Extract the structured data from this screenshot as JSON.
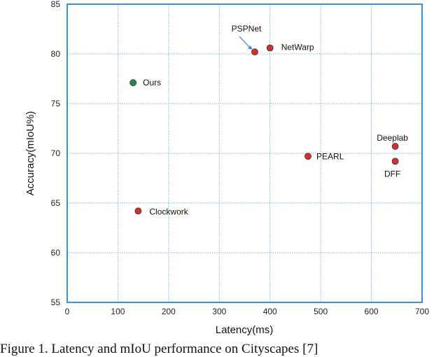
{
  "chart_data": {
    "type": "scatter",
    "xlabel": "Latency(ms)",
    "ylabel": "Accuracy(mIoU%)",
    "xlim": [
      0,
      700
    ],
    "ylim": [
      55,
      85
    ],
    "xticks": [
      0,
      100,
      200,
      300,
      400,
      500,
      600,
      700
    ],
    "yticks": [
      55,
      60,
      65,
      70,
      75,
      80,
      85
    ],
    "grid": true,
    "points": [
      {
        "label": "Ours",
        "x": 130,
        "y": 77.1,
        "color": "#1e8c4a"
      },
      {
        "label": "PSPNet",
        "x": 370,
        "y": 80.2,
        "color": "#d0312d"
      },
      {
        "label": "NetWarp",
        "x": 400,
        "y": 80.6,
        "color": "#d0312d"
      },
      {
        "label": "Deeplab",
        "x": 647,
        "y": 70.7,
        "color": "#d0312d"
      },
      {
        "label": "PEARL",
        "x": 475,
        "y": 69.7,
        "color": "#d0312d"
      },
      {
        "label": "DFF",
        "x": 647,
        "y": 69.2,
        "color": "#d0312d"
      },
      {
        "label": "Clockwork",
        "x": 140,
        "y": 64.2,
        "color": "#d0312d"
      }
    ]
  },
  "caption": "Figure 1. Latency and mIoU performance on Cityscapes [7]"
}
